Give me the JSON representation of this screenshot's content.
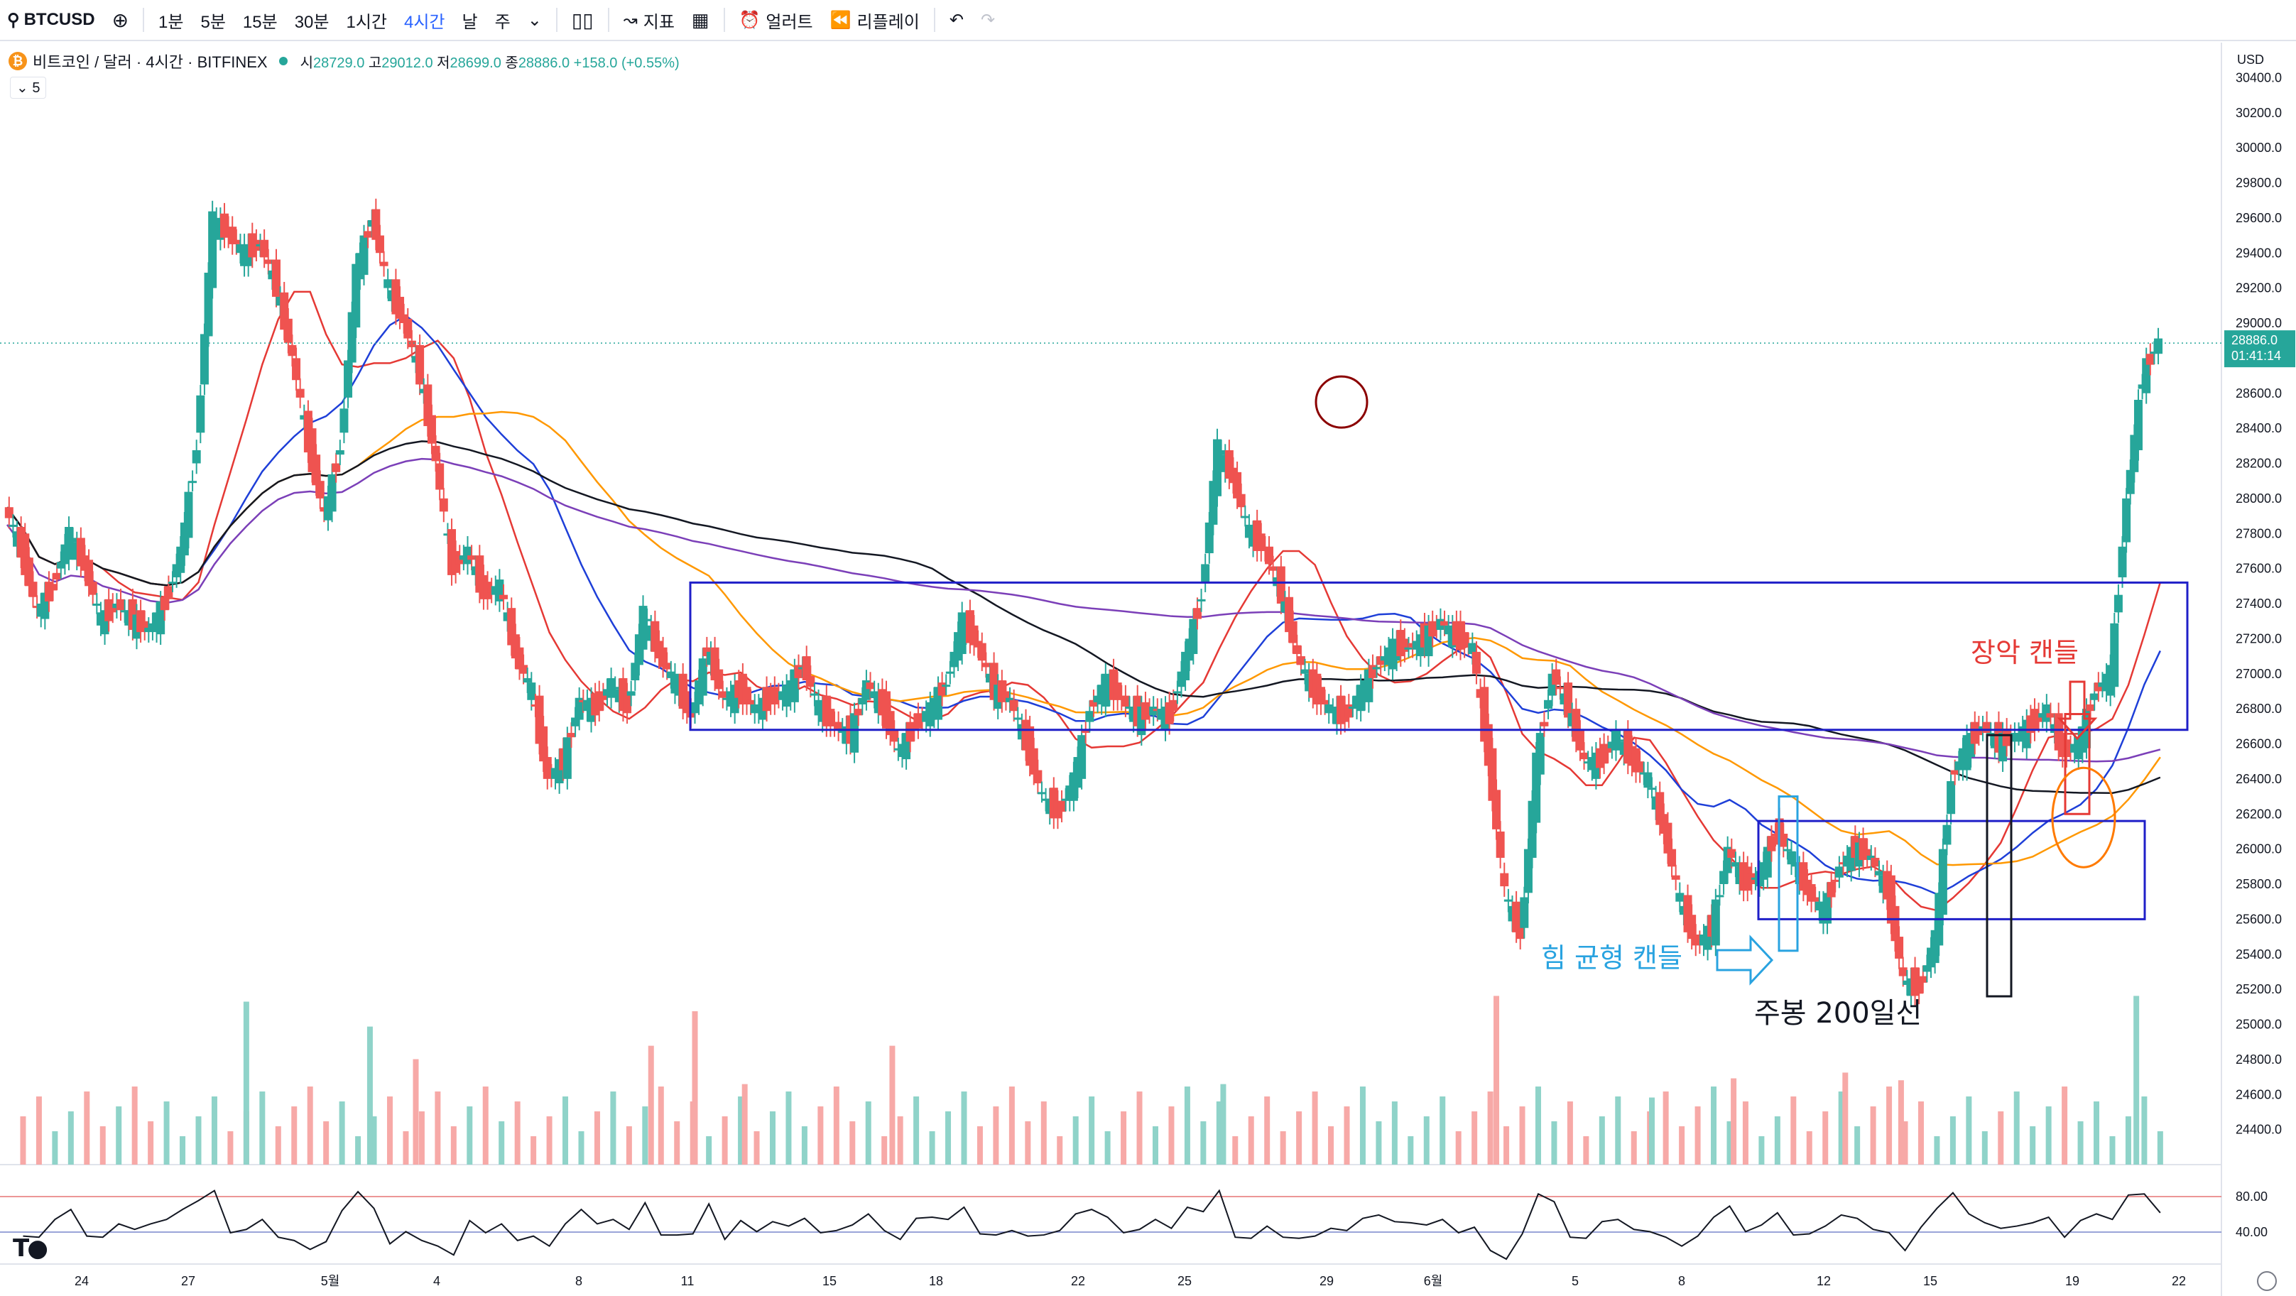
{
  "toolbar": {
    "symbol": "BTCUSD",
    "intervals": [
      "1분",
      "5분",
      "15분",
      "30분",
      "1시간",
      "4시간",
      "날",
      "주"
    ],
    "active_interval": "4시간",
    "indicators_label": "지표",
    "alerts_label": "얼러트",
    "replay_label": "리플레이"
  },
  "legend": {
    "title": "비트코인 / 달러 · 4시간 · BITFINEX",
    "o_label": "시",
    "o": "28729.0",
    "h_label": "고",
    "h": "29012.0",
    "l_label": "저",
    "l": "28699.0",
    "c_label": "종",
    "c": "28886.0",
    "change": "+158.0 (+0.55%)",
    "indicator_count": "5"
  },
  "chart_data": {
    "type": "candlestick",
    "currency": "USD",
    "last_price": "28886.0",
    "countdown": "01:41:14",
    "ylim": [
      24200,
      30600
    ],
    "y_ticks": [
      24400,
      24600,
      24800,
      25000,
      25200,
      25400,
      25600,
      25800,
      26000,
      26200,
      26400,
      26600,
      26800,
      27000,
      27200,
      27400,
      27600,
      27800,
      28000,
      28200,
      28400,
      28600,
      28800,
      29000,
      29200,
      29400,
      29600,
      29800,
      30000,
      30200,
      30400
    ],
    "x_labels": [
      "24",
      "27",
      "5월",
      "4",
      "8",
      "11",
      "15",
      "18",
      "22",
      "25",
      "29",
      "6월",
      "5",
      "8",
      "12",
      "15",
      "19",
      "22"
    ],
    "price_path": [
      [
        0,
        27950
      ],
      [
        8,
        27700
      ],
      [
        16,
        27350
      ],
      [
        24,
        27500
      ],
      [
        32,
        27800
      ],
      [
        40,
        27600
      ],
      [
        48,
        27300
      ],
      [
        56,
        27400
      ],
      [
        64,
        27300
      ],
      [
        72,
        27250
      ],
      [
        80,
        27400
      ],
      [
        88,
        27700
      ],
      [
        96,
        28300
      ],
      [
        104,
        29600
      ],
      [
        112,
        29500
      ],
      [
        120,
        29400
      ],
      [
        128,
        29450
      ],
      [
        136,
        29200
      ],
      [
        144,
        28800
      ],
      [
        152,
        28300
      ],
      [
        160,
        27900
      ],
      [
        168,
        28300
      ],
      [
        176,
        29300
      ],
      [
        184,
        29600
      ],
      [
        192,
        29200
      ],
      [
        200,
        29000
      ],
      [
        208,
        28700
      ],
      [
        216,
        28200
      ],
      [
        224,
        27600
      ],
      [
        232,
        27700
      ],
      [
        240,
        27450
      ],
      [
        248,
        27500
      ],
      [
        256,
        27100
      ],
      [
        264,
        26900
      ],
      [
        272,
        26400
      ],
      [
        280,
        26500
      ],
      [
        288,
        26850
      ],
      [
        296,
        26800
      ],
      [
        304,
        26950
      ],
      [
        312,
        26800
      ],
      [
        320,
        27350
      ],
      [
        328,
        27100
      ],
      [
        336,
        26950
      ],
      [
        344,
        26750
      ],
      [
        352,
        27150
      ],
      [
        360,
        26850
      ],
      [
        368,
        26900
      ],
      [
        376,
        26800
      ],
      [
        384,
        26850
      ],
      [
        392,
        26900
      ],
      [
        400,
        27050
      ],
      [
        408,
        26800
      ],
      [
        416,
        26700
      ],
      [
        424,
        26650
      ],
      [
        432,
        26950
      ],
      [
        440,
        26800
      ],
      [
        448,
        26550
      ],
      [
        456,
        26700
      ],
      [
        464,
        26800
      ],
      [
        472,
        26950
      ],
      [
        480,
        27300
      ],
      [
        488,
        27150
      ],
      [
        496,
        26900
      ],
      [
        504,
        26850
      ],
      [
        512,
        26600
      ],
      [
        520,
        26300
      ],
      [
        528,
        26200
      ],
      [
        536,
        26400
      ],
      [
        544,
        26800
      ],
      [
        552,
        26950
      ],
      [
        560,
        26850
      ],
      [
        568,
        26750
      ],
      [
        576,
        26800
      ],
      [
        584,
        26750
      ],
      [
        592,
        27100
      ],
      [
        600,
        27450
      ],
      [
        608,
        28300
      ],
      [
        616,
        28100
      ],
      [
        624,
        27800
      ],
      [
        632,
        27700
      ],
      [
        640,
        27450
      ],
      [
        648,
        27100
      ],
      [
        656,
        26900
      ],
      [
        664,
        26800
      ],
      [
        672,
        26750
      ],
      [
        680,
        26900
      ],
      [
        688,
        27050
      ],
      [
        696,
        27150
      ],
      [
        704,
        27150
      ],
      [
        712,
        27200
      ],
      [
        720,
        27300
      ],
      [
        728,
        27200
      ],
      [
        736,
        27150
      ],
      [
        744,
        26500
      ],
      [
        752,
        25750
      ],
      [
        760,
        25500
      ],
      [
        768,
        26500
      ],
      [
        776,
        27000
      ],
      [
        784,
        26800
      ],
      [
        792,
        26500
      ],
      [
        800,
        26500
      ],
      [
        808,
        26650
      ],
      [
        816,
        26500
      ],
      [
        824,
        26400
      ],
      [
        832,
        26100
      ],
      [
        840,
        25700
      ],
      [
        848,
        25450
      ],
      [
        856,
        25550
      ],
      [
        864,
        26000
      ],
      [
        872,
        25800
      ],
      [
        880,
        25850
      ],
      [
        888,
        26100
      ],
      [
        896,
        25950
      ],
      [
        904,
        25750
      ],
      [
        912,
        25650
      ],
      [
        920,
        25900
      ],
      [
        928,
        26000
      ],
      [
        936,
        25950
      ],
      [
        944,
        25750
      ],
      [
        952,
        25250
      ],
      [
        960,
        25200
      ],
      [
        968,
        25500
      ],
      [
        976,
        26400
      ],
      [
        984,
        26600
      ],
      [
        992,
        26700
      ],
      [
        1000,
        26600
      ],
      [
        1008,
        26650
      ],
      [
        1016,
        26700
      ],
      [
        1024,
        26800
      ],
      [
        1032,
        26550
      ],
      [
        1040,
        26600
      ],
      [
        1048,
        26900
      ],
      [
        1056,
        27000
      ],
      [
        1064,
        28000
      ],
      [
        1072,
        28700
      ],
      [
        1080,
        28900
      ]
    ],
    "volume_bars": [
      {
        "x": 120,
        "h": 0.85,
        "up": true
      },
      {
        "x": 182,
        "h": 0.72,
        "up": true
      },
      {
        "x": 205,
        "h": 0.55,
        "up": false
      },
      {
        "x": 323,
        "h": 0.62,
        "up": false
      },
      {
        "x": 345,
        "h": 0.8,
        "up": false
      },
      {
        "x": 370,
        "h": 0.42,
        "up": false
      },
      {
        "x": 444,
        "h": 0.62,
        "up": false
      },
      {
        "x": 610,
        "h": 0.42,
        "up": true
      },
      {
        "x": 747,
        "h": 0.88,
        "up": false
      },
      {
        "x": 825,
        "h": 0.35,
        "up": true
      },
      {
        "x": 866,
        "h": 0.45,
        "up": false
      },
      {
        "x": 922,
        "h": 0.48,
        "up": false
      },
      {
        "x": 950,
        "h": 0.44,
        "up": false
      },
      {
        "x": 1068,
        "h": 0.88,
        "up": true
      }
    ],
    "rsi": {
      "levels": [
        "80.00",
        "40.00"
      ]
    },
    "annotations": {
      "engulfing": "장악 캔들",
      "force_balance": "힘 균형 캔들",
      "weekly_200": "주봉 200일선"
    }
  }
}
